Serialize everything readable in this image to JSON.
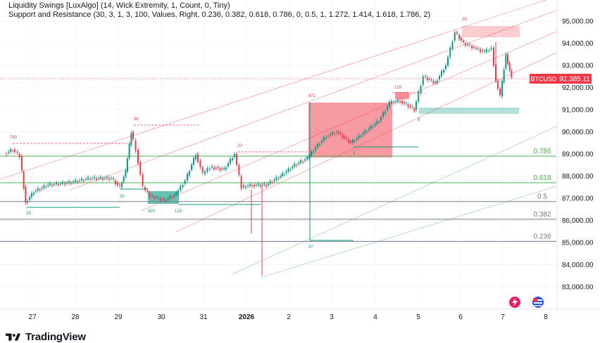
{
  "indicators": [
    "Liquidity Swings [LuxAlgo] (14, Wick Extremity, 1, Count, 0, Tiny)",
    "Support and Resistance (30, 3, 1, 3, 100, Values, Right, 0.236, 0.382, 0.618, 0.786, 0, 0.5, 1, 1.272, 1.414, 1.618, 1.786, 2)"
  ],
  "price_axis": [
    "95,000.00",
    "94,000.00",
    "93,000.00",
    "92,000.00",
    "91,000.00",
    "90,000.00",
    "89,000.00",
    "88,000.00",
    "87,000.00",
    "86,000.00",
    "85,000.00",
    "84,000.00",
    "83,000.00"
  ],
  "time_axis": [
    "27",
    "28",
    "29",
    "30",
    "31",
    "2026",
    "2",
    "3",
    "4",
    "5",
    "6",
    "7",
    "8"
  ],
  "current_price": {
    "symbol": "BTCUSD",
    "value": "92,385.11",
    "color": "#f23645"
  },
  "fib_levels": [
    {
      "label": "0.786",
      "color": "#4caf50",
      "price": 88900
    },
    {
      "label": "0.618",
      "color": "#4caf50",
      "price": 87700
    },
    {
      "label": "0.5",
      "color": "#787b86",
      "price": 86850
    },
    {
      "label": "0.382",
      "color": "#787b86",
      "price": 86050
    },
    {
      "label": "0.236",
      "color": "#787b86",
      "price": 85050
    }
  ],
  "swing_labels": [
    {
      "text": "743",
      "color": "#f23645"
    },
    {
      "text": "58",
      "color": "#f23645"
    },
    {
      "text": "20",
      "color": "#f23645"
    },
    {
      "text": "872",
      "color": "#f23645"
    },
    {
      "text": "129",
      "color": "#f23645"
    },
    {
      "text": "29",
      "color": "#f23645"
    },
    {
      "text": "28",
      "color": "#089981"
    },
    {
      "text": "30",
      "color": "#089981"
    },
    {
      "text": "320",
      "color": "#089981"
    },
    {
      "text": "123",
      "color": "#089981"
    },
    {
      "text": "47",
      "color": "#089981"
    },
    {
      "text": "3",
      "color": "#089981"
    },
    {
      "text": "8",
      "color": "#089981"
    }
  ],
  "logo": {
    "brand": "TradingView",
    "icon": "tradingview-logo-icon"
  },
  "colors": {
    "up": "#089981",
    "down": "#f23645",
    "grid": "#f0f3fa"
  }
}
